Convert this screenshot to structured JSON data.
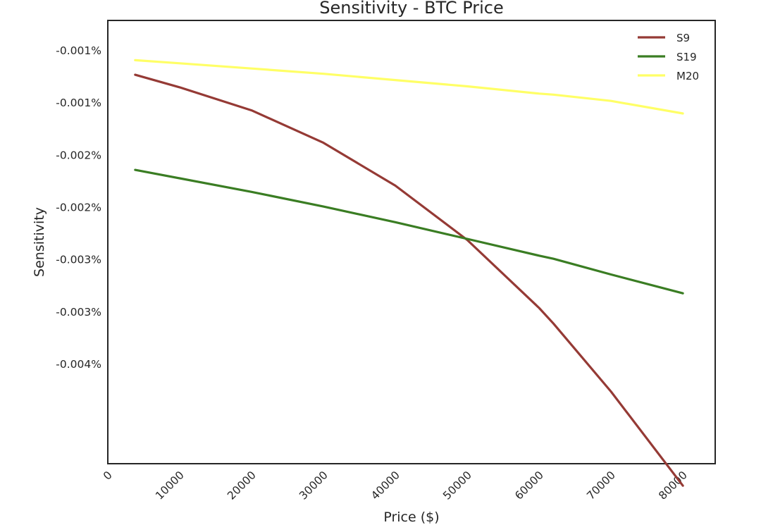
{
  "chart_data": {
    "type": "line",
    "title": "Sensitivity - BTC Price",
    "xlabel": "Price ($)",
    "ylabel": "Sensitivity",
    "xlim": [
      0,
      84500
    ],
    "ylim": [
      -0.00445,
      -0.00021
    ],
    "grid": false,
    "legend_position": "top-right",
    "x_ticks": [
      {
        "value": 0,
        "label": "0"
      },
      {
        "value": 10000,
        "label": "10000"
      },
      {
        "value": 20000,
        "label": "20000"
      },
      {
        "value": 30000,
        "label": "30000"
      },
      {
        "value": 40000,
        "label": "40000"
      },
      {
        "value": 50000,
        "label": "50000"
      },
      {
        "value": 60000,
        "label": "60000"
      },
      {
        "value": 70000,
        "label": "70000"
      },
      {
        "value": 80000,
        "label": "80000"
      }
    ],
    "y_ticks": [
      {
        "value": -0.0005,
        "label": "-0.001%"
      },
      {
        "value": -0.001,
        "label": "-0.001%"
      },
      {
        "value": -0.0015,
        "label": "-0.002%"
      },
      {
        "value": -0.002,
        "label": "-0.002%"
      },
      {
        "value": -0.0025,
        "label": "-0.003%"
      },
      {
        "value": -0.003,
        "label": "-0.003%"
      },
      {
        "value": -0.0035,
        "label": "-0.004%"
      }
    ],
    "x": [
      3800,
      10000,
      20000,
      30000,
      40000,
      50000,
      60000,
      62000,
      70000,
      80000
    ],
    "series": [
      {
        "name": "S9",
        "color": "#953a35",
        "values": [
          -0.00073,
          -0.00085,
          -0.00107,
          -0.00138,
          -0.00179,
          -0.00231,
          -0.00296,
          -0.00311,
          -0.00376,
          -0.00466
        ]
      },
      {
        "name": "S19",
        "color": "#3a7d23",
        "values": [
          -0.00164,
          -0.00172,
          -0.00185,
          -0.00199,
          -0.00214,
          -0.0023,
          -0.00246,
          -0.00249,
          -0.00264,
          -0.00282
        ]
      },
      {
        "name": "M20",
        "color": "#ffff66",
        "values": [
          -0.00059,
          -0.00062,
          -0.00067,
          -0.00072,
          -0.00078,
          -0.00084,
          -0.00091,
          -0.00092,
          -0.00098,
          -0.0011
        ]
      }
    ]
  }
}
